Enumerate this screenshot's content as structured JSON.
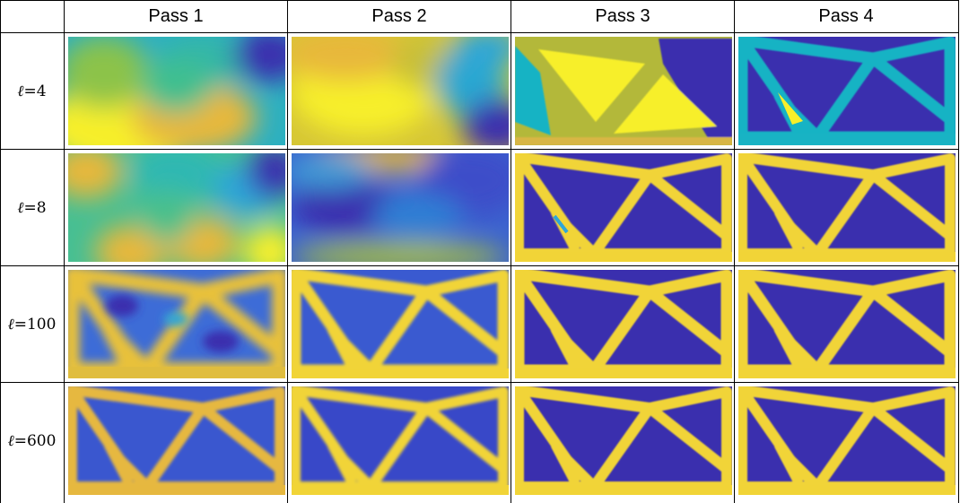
{
  "table": {
    "columns": [
      "Pass 1",
      "Pass 2",
      "Pass 3",
      "Pass 4"
    ],
    "rows": [
      {
        "label_var": "ℓ",
        "label_eq": " = ",
        "label_val": "4"
      },
      {
        "label_var": "ℓ",
        "label_eq": " = ",
        "label_val": "8"
      },
      {
        "label_var": "ℓ",
        "label_eq": " = ",
        "label_val": "100"
      },
      {
        "label_var": "ℓ",
        "label_eq": " = ",
        "label_val": "600"
      }
    ]
  },
  "colors": {
    "void": "#3a2fae",
    "solid": "#f1d437",
    "bright": "#f7ef2a",
    "teal": "#18b3c4",
    "cyan": "#2fa6d8",
    "olive": "#b3b83a",
    "orange": "#e8b83b"
  }
}
